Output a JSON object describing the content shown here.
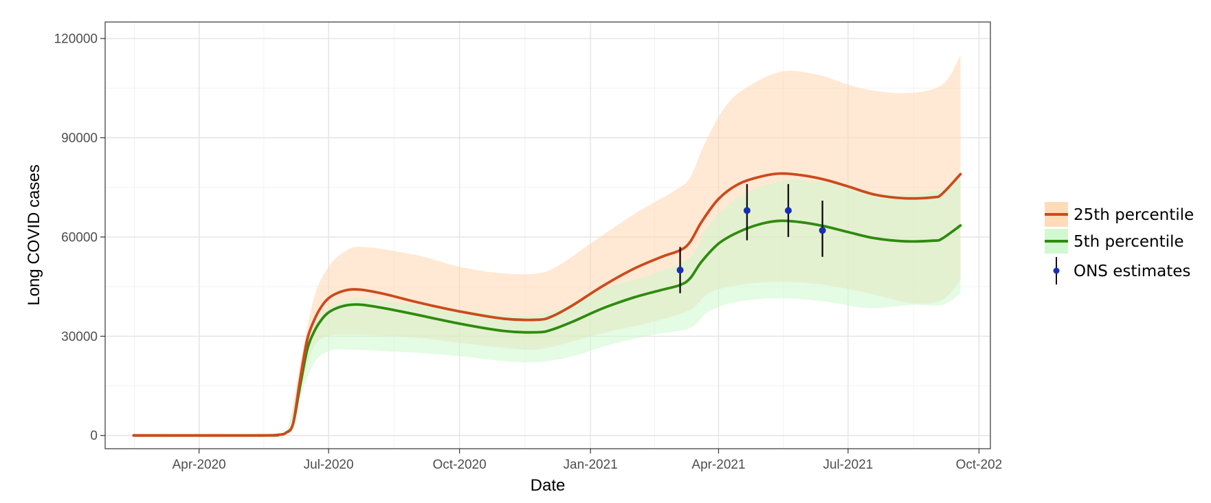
{
  "chart_data": {
    "type": "line",
    "xlabel": "Date",
    "ylabel": "Long COVID cases",
    "x_range": [
      "2020-01-26",
      "2021-10-09"
    ],
    "ylim": [
      -4000,
      125000
    ],
    "y_ticks": [
      0,
      30000,
      60000,
      90000,
      120000
    ],
    "x_ticks": [
      {
        "date": "2020-04-01",
        "label": "Apr-2020"
      },
      {
        "date": "2020-07-01",
        "label": "Jul-2020"
      },
      {
        "date": "2020-10-01",
        "label": "Oct-2020"
      },
      {
        "date": "2021-01-01",
        "label": "Jan-2021"
      },
      {
        "date": "2021-04-01",
        "label": "Apr-2021"
      },
      {
        "date": "2021-07-01",
        "label": "Jul-2021"
      },
      {
        "date": "2021-10-01",
        "label": "Oct-202"
      }
    ],
    "grid": true,
    "legend_position": "right",
    "series": [
      {
        "name": "25th percentile",
        "color": "#cc4a1c",
        "band_color": "#ffd7b0",
        "points": [
          [
            "2020-02-15",
            0
          ],
          [
            "2020-03-15",
            0
          ],
          [
            "2020-04-15",
            0
          ],
          [
            "2020-05-15",
            0
          ],
          [
            "2020-05-27",
            200
          ],
          [
            "2020-06-01",
            800
          ],
          [
            "2020-06-06",
            3500
          ],
          [
            "2020-06-11",
            17000
          ],
          [
            "2020-06-16",
            29000
          ],
          [
            "2020-06-21",
            35000
          ],
          [
            "2020-06-26",
            39000
          ],
          [
            "2020-07-01",
            41500
          ],
          [
            "2020-07-08",
            43200
          ],
          [
            "2020-07-16",
            44100
          ],
          [
            "2020-07-25",
            44000
          ],
          [
            "2020-08-10",
            42700
          ],
          [
            "2020-09-01",
            40300
          ],
          [
            "2020-10-01",
            37500
          ],
          [
            "2020-11-01",
            35300
          ],
          [
            "2020-11-25",
            35000
          ],
          [
            "2020-12-05",
            36000
          ],
          [
            "2020-12-20",
            39500
          ],
          [
            "2021-01-10",
            45300
          ],
          [
            "2021-02-01",
            50500
          ],
          [
            "2021-02-20",
            54000
          ],
          [
            "2021-03-05",
            56000
          ],
          [
            "2021-03-12",
            58500
          ],
          [
            "2021-03-20",
            64500
          ],
          [
            "2021-04-01",
            71500
          ],
          [
            "2021-04-15",
            76000
          ],
          [
            "2021-05-01",
            78300
          ],
          [
            "2021-05-15",
            79200
          ],
          [
            "2021-06-01",
            78500
          ],
          [
            "2021-06-15",
            77300
          ],
          [
            "2021-07-01",
            75300
          ],
          [
            "2021-07-20",
            72800
          ],
          [
            "2021-08-10",
            71700
          ],
          [
            "2021-08-30",
            72000
          ],
          [
            "2021-09-05",
            73000
          ],
          [
            "2021-09-18",
            79000
          ]
        ],
        "band_lower": [
          [
            "2020-02-15",
            0
          ],
          [
            "2020-05-15",
            0
          ],
          [
            "2020-06-01",
            800
          ],
          [
            "2020-06-11",
            14000
          ],
          [
            "2020-06-21",
            27000
          ],
          [
            "2020-07-01",
            30000
          ],
          [
            "2020-07-15",
            30500
          ],
          [
            "2020-09-01",
            29500
          ],
          [
            "2020-10-01",
            28000
          ],
          [
            "2020-11-01",
            26500
          ],
          [
            "2020-11-25",
            26000
          ],
          [
            "2020-12-20",
            28500
          ],
          [
            "2021-01-15",
            31500
          ],
          [
            "2021-02-15",
            34500
          ],
          [
            "2021-03-12",
            38000
          ],
          [
            "2021-03-25",
            43000
          ],
          [
            "2021-04-15",
            45500
          ],
          [
            "2021-05-15",
            46500
          ],
          [
            "2021-06-15",
            45500
          ],
          [
            "2021-07-15",
            43000
          ],
          [
            "2021-08-15",
            40000
          ],
          [
            "2021-09-05",
            41000
          ],
          [
            "2021-09-18",
            47000
          ]
        ],
        "band_upper": [
          [
            "2020-02-15",
            0
          ],
          [
            "2020-05-15",
            0
          ],
          [
            "2020-06-01",
            1000
          ],
          [
            "2020-06-11",
            22000
          ],
          [
            "2020-06-21",
            42000
          ],
          [
            "2020-07-01",
            51000
          ],
          [
            "2020-07-12",
            55500
          ],
          [
            "2020-07-25",
            57000
          ],
          [
            "2020-09-01",
            54500
          ],
          [
            "2020-10-01",
            51000
          ],
          [
            "2020-11-01",
            49000
          ],
          [
            "2020-11-25",
            49000
          ],
          [
            "2020-12-10",
            51500
          ],
          [
            "2021-01-01",
            58000
          ],
          [
            "2021-02-01",
            67000
          ],
          [
            "2021-03-01",
            74000
          ],
          [
            "2021-03-12",
            78000
          ],
          [
            "2021-03-22",
            88000
          ],
          [
            "2021-04-05",
            99000
          ],
          [
            "2021-04-20",
            105000
          ],
          [
            "2021-05-15",
            110000
          ],
          [
            "2021-06-10",
            109000
          ],
          [
            "2021-07-10",
            105000
          ],
          [
            "2021-08-10",
            103500
          ],
          [
            "2021-09-05",
            106000
          ],
          [
            "2021-09-18",
            115000
          ]
        ]
      },
      {
        "name": "5th percentile",
        "color": "#2e8b0e",
        "band_color": "#cdf7cd",
        "points": [
          [
            "2020-02-15",
            0
          ],
          [
            "2020-05-15",
            0
          ],
          [
            "2020-05-27",
            200
          ],
          [
            "2020-06-01",
            800
          ],
          [
            "2020-06-06",
            3500
          ],
          [
            "2020-06-11",
            15000
          ],
          [
            "2020-06-16",
            26000
          ],
          [
            "2020-06-21",
            31500
          ],
          [
            "2020-06-26",
            35000
          ],
          [
            "2020-07-01",
            37200
          ],
          [
            "2020-07-08",
            38700
          ],
          [
            "2020-07-16",
            39500
          ],
          [
            "2020-07-25",
            39500
          ],
          [
            "2020-08-10",
            38400
          ],
          [
            "2020-09-01",
            36500
          ],
          [
            "2020-10-01",
            33800
          ],
          [
            "2020-11-01",
            31600
          ],
          [
            "2020-11-25",
            31200
          ],
          [
            "2020-12-05",
            32000
          ],
          [
            "2020-12-20",
            34500
          ],
          [
            "2021-01-10",
            38500
          ],
          [
            "2021-02-01",
            41800
          ],
          [
            "2021-02-20",
            44000
          ],
          [
            "2021-03-05",
            45500
          ],
          [
            "2021-03-12",
            47500
          ],
          [
            "2021-03-20",
            52500
          ],
          [
            "2021-04-01",
            58000
          ],
          [
            "2021-04-15",
            61500
          ],
          [
            "2021-05-01",
            64000
          ],
          [
            "2021-05-15",
            64900
          ],
          [
            "2021-06-01",
            64300
          ],
          [
            "2021-06-15",
            63200
          ],
          [
            "2021-07-01",
            61500
          ],
          [
            "2021-07-20",
            59600
          ],
          [
            "2021-08-10",
            58700
          ],
          [
            "2021-08-30",
            58900
          ],
          [
            "2021-09-05",
            59500
          ],
          [
            "2021-09-18",
            63500
          ]
        ],
        "band_lower": [
          [
            "2020-02-15",
            0
          ],
          [
            "2020-05-15",
            0
          ],
          [
            "2020-06-01",
            600
          ],
          [
            "2020-06-11",
            12000
          ],
          [
            "2020-06-21",
            22000
          ],
          [
            "2020-07-01",
            25500
          ],
          [
            "2020-07-15",
            26000
          ],
          [
            "2020-09-01",
            25000
          ],
          [
            "2020-10-01",
            24000
          ],
          [
            "2020-11-01",
            22500
          ],
          [
            "2020-11-25",
            22200
          ],
          [
            "2020-12-20",
            24000
          ],
          [
            "2021-01-15",
            27500
          ],
          [
            "2021-02-15",
            30500
          ],
          [
            "2021-03-12",
            32500
          ],
          [
            "2021-03-25",
            37500
          ],
          [
            "2021-04-15",
            40500
          ],
          [
            "2021-05-15",
            41500
          ],
          [
            "2021-06-15",
            40500
          ],
          [
            "2021-07-15",
            38500
          ],
          [
            "2021-08-15",
            39500
          ],
          [
            "2021-09-05",
            39500
          ],
          [
            "2021-09-18",
            43000
          ]
        ],
        "band_upper": [
          [
            "2020-02-15",
            0
          ],
          [
            "2020-05-15",
            0
          ],
          [
            "2020-06-01",
            900
          ],
          [
            "2020-06-11",
            19000
          ],
          [
            "2020-06-21",
            33000
          ],
          [
            "2020-07-01",
            38500
          ],
          [
            "2020-07-15",
            41000
          ],
          [
            "2020-07-25",
            41500
          ],
          [
            "2020-09-01",
            39500
          ],
          [
            "2020-10-01",
            38000
          ],
          [
            "2020-11-01",
            36500
          ],
          [
            "2020-11-25",
            36500
          ],
          [
            "2020-12-20",
            40000
          ],
          [
            "2021-01-15",
            45000
          ],
          [
            "2021-02-15",
            49000
          ],
          [
            "2021-03-12",
            54000
          ],
          [
            "2021-03-25",
            63500
          ],
          [
            "2021-04-15",
            72000
          ],
          [
            "2021-05-15",
            77000
          ],
          [
            "2021-06-15",
            76500
          ],
          [
            "2021-07-15",
            73500
          ],
          [
            "2021-08-15",
            73000
          ],
          [
            "2021-09-05",
            74500
          ],
          [
            "2021-09-18",
            79000
          ]
        ]
      }
    ],
    "ons_estimates": {
      "name": "ONS estimates",
      "color": "#1a2fb0",
      "points": [
        {
          "date": "2021-03-05",
          "value": 50000,
          "low": 43000,
          "high": 57000
        },
        {
          "date": "2021-04-21",
          "value": 68000,
          "low": 59000,
          "high": 76000
        },
        {
          "date": "2021-05-20",
          "value": 68000,
          "low": 60000,
          "high": 76000
        },
        {
          "date": "2021-06-13",
          "value": 62000,
          "low": 54000,
          "high": 71000
        }
      ]
    }
  }
}
